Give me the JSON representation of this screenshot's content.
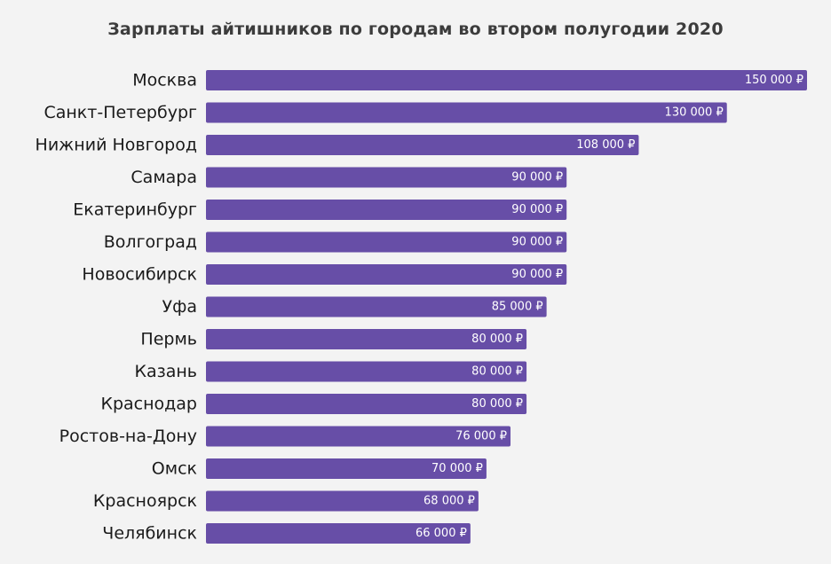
{
  "chart_data": {
    "type": "bar",
    "orientation": "horizontal",
    "title": "Зарплаты айтишников по городам во втором полугодии 2020",
    "xlabel": "",
    "ylabel": "",
    "grid": false,
    "xlim": [
      0,
      150000
    ],
    "bar_color": "#674ea7",
    "value_format": "{value} ₽",
    "categories": [
      "Москва",
      "Санкт-Петербург",
      "Нижний Новгород",
      "Самара",
      "Екатеринбург",
      "Волгоград",
      "Новосибирск",
      "Уфа",
      "Пермь",
      "Казань",
      "Краснодар",
      "Ростов-на-Дону",
      "Омск",
      "Красноярск",
      "Челябинск"
    ],
    "values": [
      150000,
      130000,
      108000,
      90000,
      90000,
      90000,
      90000,
      85000,
      80000,
      80000,
      80000,
      76000,
      70000,
      68000,
      66000
    ],
    "value_labels": [
      "150 000 ₽",
      "130 000 ₽",
      "108 000 ₽",
      "90 000 ₽",
      "90 000 ₽",
      "90 000 ₽",
      "90 000 ₽",
      "85 000 ₽",
      "80 000 ₽",
      "80 000 ₽",
      "80 000 ₽",
      "76 000 ₽",
      "70 000 ₽",
      "68 000 ₽",
      "66 000 ₽"
    ]
  }
}
